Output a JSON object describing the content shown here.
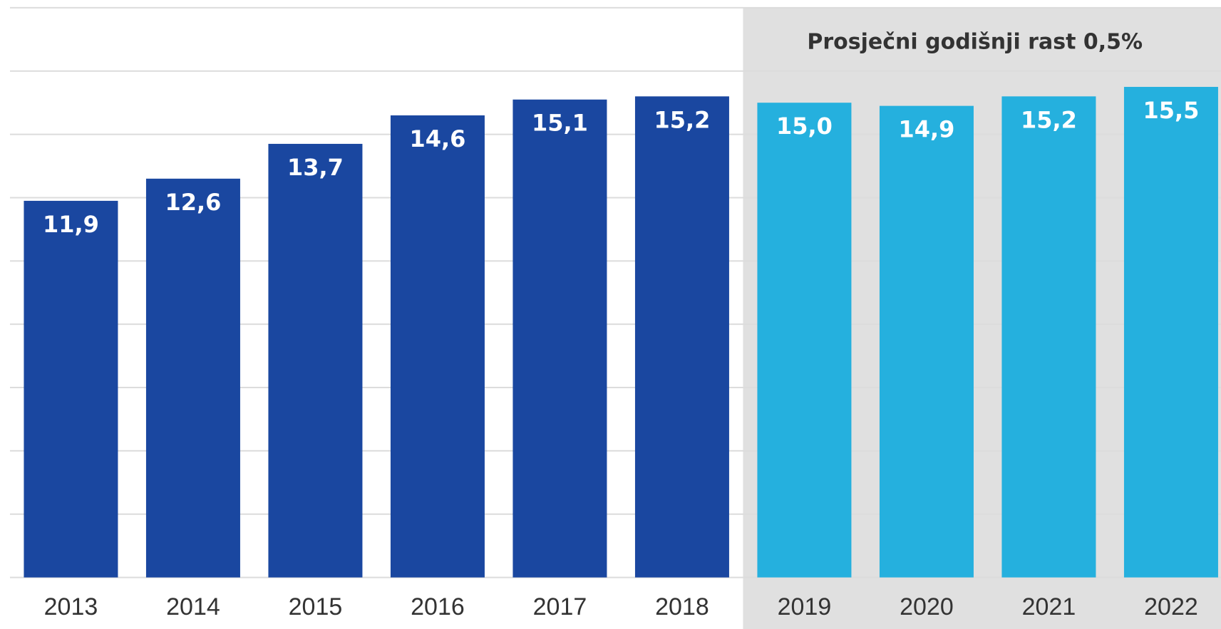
{
  "chart_data": {
    "type": "bar",
    "annotation": "Prosječni godišnji rast 0,5%",
    "categories": [
      "2013",
      "2014",
      "2015",
      "2016",
      "2017",
      "2018",
      "2019",
      "2020",
      "2021",
      "2022"
    ],
    "values": [
      11.9,
      12.6,
      13.7,
      14.6,
      15.1,
      15.2,
      15.0,
      14.9,
      15.2,
      15.5
    ],
    "value_labels": [
      "11,9",
      "12,6",
      "13,7",
      "14,6",
      "15,1",
      "15,2",
      "15,0",
      "14,9",
      "15,2",
      "15,5"
    ],
    "colors": [
      "#1a47a0",
      "#1a47a0",
      "#1a47a0",
      "#1a47a0",
      "#1a47a0",
      "#1a47a0",
      "#25b0de",
      "#25b0de",
      "#25b0de",
      "#25b0de"
    ],
    "shade_color": "#e0e0e0",
    "ylim": [
      0,
      18
    ],
    "yticks": [
      0,
      2,
      4,
      6,
      8,
      10,
      12,
      14,
      16,
      18
    ],
    "grid": true
  }
}
